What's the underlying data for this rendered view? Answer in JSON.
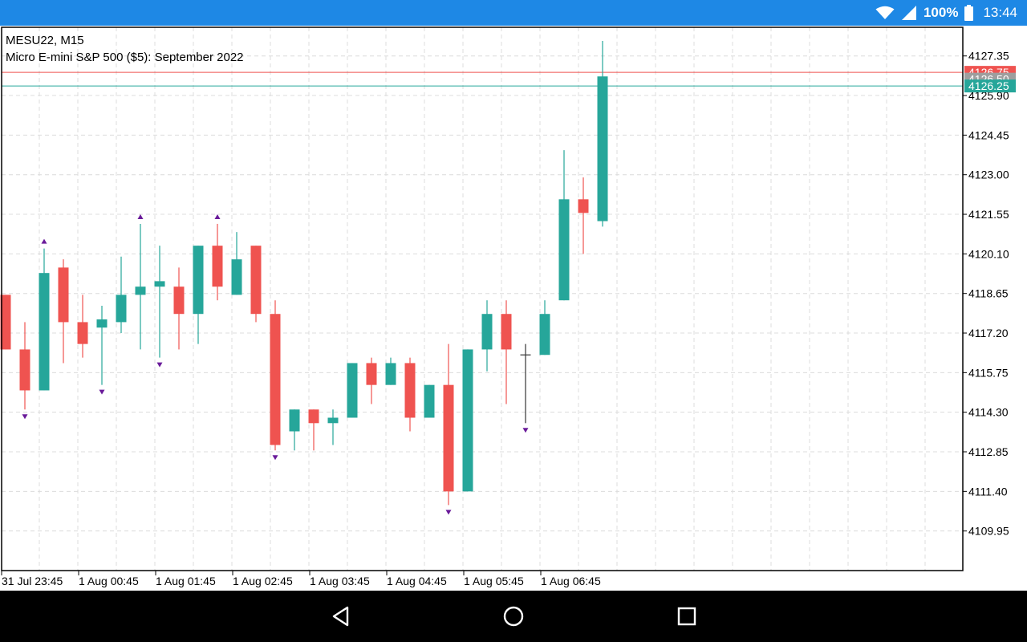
{
  "status_bar": {
    "battery": "100%",
    "time": "13:44"
  },
  "chart": {
    "symbol": "MESU22, M15",
    "description": "Micro E-mini S&P 500 ($5): September 2022",
    "colors": {
      "bull": "#26a69a",
      "bear": "#ef5350",
      "doji": "#333333",
      "marker": "#6a1b9a",
      "grid": "#dcdcdc",
      "bid_line": "#ef5350",
      "ask_line": "#26a69a",
      "mid_line": "#9e9e9e"
    }
  },
  "chart_data": {
    "type": "candlestick",
    "ylim": [
      4108.5,
      4128.4
    ],
    "y_ticks": [
      "4127.35",
      "4125.90",
      "4124.45",
      "4123.00",
      "4121.55",
      "4120.10",
      "4118.65",
      "4117.20",
      "4115.75",
      "4114.30",
      "4112.85",
      "4111.40",
      "4109.95"
    ],
    "x_tick_labels": [
      "31 Jul 23:45",
      "1 Aug 00:45",
      "1 Aug 01:45",
      "1 Aug 02:45",
      "1 Aug 03:45",
      "1 Aug 04:45",
      "1 Aug 05:45",
      "1 Aug 06:45"
    ],
    "price_labels": [
      {
        "text": "4126.75",
        "kind": "bid"
      },
      {
        "text": "4126.50",
        "kind": "mid"
      },
      {
        "text": "4126.25",
        "kind": "ask"
      }
    ],
    "candles": [
      {
        "o": 4118.6,
        "h": 4118.6,
        "l": 4116.6,
        "c": 4116.6
      },
      {
        "o": 4116.6,
        "h": 4117.6,
        "l": 4114.4,
        "c": 4115.1,
        "mk": "down"
      },
      {
        "o": 4115.1,
        "h": 4120.3,
        "l": 4115.1,
        "c": 4119.4,
        "mk": "up"
      },
      {
        "o": 4119.6,
        "h": 4119.9,
        "l": 4116.1,
        "c": 4117.6
      },
      {
        "o": 4117.6,
        "h": 4118.6,
        "l": 4116.3,
        "c": 4116.8
      },
      {
        "o": 4117.4,
        "h": 4118.2,
        "l": 4115.3,
        "c": 4117.7,
        "mk": "down"
      },
      {
        "o": 4117.6,
        "h": 4120.0,
        "l": 4117.2,
        "c": 4118.6
      },
      {
        "o": 4118.6,
        "h": 4121.2,
        "l": 4116.6,
        "c": 4118.9,
        "mk": "up"
      },
      {
        "o": 4118.9,
        "h": 4120.4,
        "l": 4116.3,
        "c": 4119.1,
        "mk": "down"
      },
      {
        "o": 4118.9,
        "h": 4119.6,
        "l": 4116.6,
        "c": 4117.9
      },
      {
        "o": 4117.9,
        "h": 4120.4,
        "l": 4116.8,
        "c": 4120.4
      },
      {
        "o": 4120.4,
        "h": 4121.2,
        "l": 4118.4,
        "c": 4118.9,
        "mk": "up"
      },
      {
        "o": 4118.6,
        "h": 4120.9,
        "l": 4118.6,
        "c": 4119.9
      },
      {
        "o": 4120.4,
        "h": 4120.4,
        "l": 4117.6,
        "c": 4117.9
      },
      {
        "o": 4117.9,
        "h": 4118.4,
        "l": 4112.9,
        "c": 4113.1,
        "mk": "down"
      },
      {
        "o": 4113.6,
        "h": 4114.4,
        "l": 4112.9,
        "c": 4114.4
      },
      {
        "o": 4114.4,
        "h": 4114.4,
        "l": 4112.9,
        "c": 4113.9
      },
      {
        "o": 4113.9,
        "h": 4114.4,
        "l": 4113.1,
        "c": 4114.1
      },
      {
        "o": 4114.1,
        "h": 4116.1,
        "l": 4114.1,
        "c": 4116.1
      },
      {
        "o": 4116.1,
        "h": 4116.3,
        "l": 4114.6,
        "c": 4115.3
      },
      {
        "o": 4115.3,
        "h": 4116.3,
        "l": 4115.3,
        "c": 4116.1
      },
      {
        "o": 4116.1,
        "h": 4116.3,
        "l": 4113.6,
        "c": 4114.1
      },
      {
        "o": 4114.1,
        "h": 4115.3,
        "l": 4114.1,
        "c": 4115.3
      },
      {
        "o": 4115.3,
        "h": 4116.8,
        "l": 4110.9,
        "c": 4111.4,
        "mk": "down"
      },
      {
        "o": 4111.4,
        "h": 4116.6,
        "l": 4111.4,
        "c": 4116.6
      },
      {
        "o": 4116.6,
        "h": 4118.4,
        "l": 4115.8,
        "c": 4117.9
      },
      {
        "o": 4117.9,
        "h": 4118.4,
        "l": 4114.6,
        "c": 4116.6
      },
      {
        "o": 4116.4,
        "h": 4116.8,
        "l": 4113.9,
        "c": 4116.4,
        "mk": "down"
      },
      {
        "o": 4116.4,
        "h": 4118.4,
        "l": 4116.4,
        "c": 4117.9
      },
      {
        "o": 4118.4,
        "h": 4123.9,
        "l": 4118.4,
        "c": 4122.1
      },
      {
        "o": 4122.1,
        "h": 4122.9,
        "l": 4120.1,
        "c": 4121.6
      },
      {
        "o": 4121.3,
        "h": 4127.9,
        "l": 4121.1,
        "c": 4126.6
      }
    ]
  }
}
